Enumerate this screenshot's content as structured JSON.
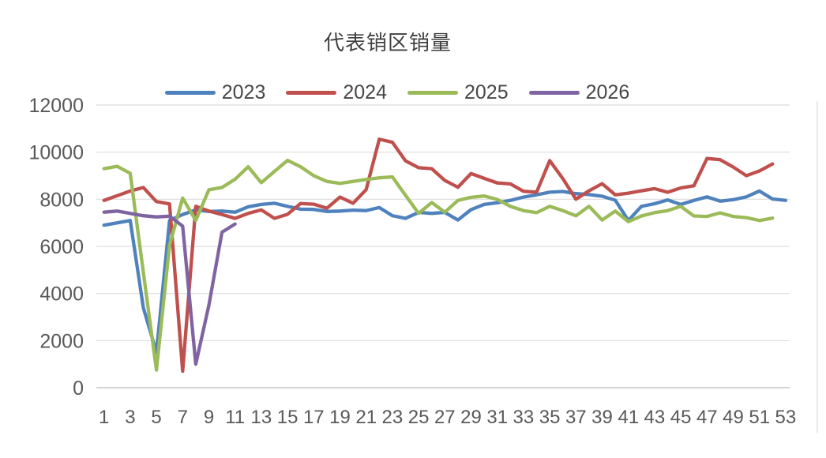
{
  "chart_data": {
    "type": "line",
    "title": "代表销区销量",
    "xlabel": "",
    "ylabel": "",
    "x_unit": "week",
    "xlim": [
      1,
      53
    ],
    "ylim": [
      0,
      12000
    ],
    "yticks": [
      0,
      2000,
      4000,
      6000,
      8000,
      10000,
      12000
    ],
    "xticks": [
      1,
      3,
      5,
      7,
      9,
      11,
      13,
      15,
      17,
      19,
      21,
      23,
      25,
      27,
      29,
      31,
      33,
      35,
      37,
      39,
      41,
      43,
      45,
      47,
      49,
      51,
      53
    ],
    "grid": "horizontal",
    "legend_position": "top-center",
    "gridline_color": "#dddddd",
    "axis_line_color": "#c9c9c9",
    "axis_text_color": "#595959",
    "series": [
      {
        "name": "2023",
        "color": "#4F81BD",
        "start_week": 1,
        "values": [
          6900,
          7000,
          7100,
          3400,
          1500,
          7100,
          7350,
          7550,
          7480,
          7500,
          7450,
          7680,
          7780,
          7830,
          7700,
          7580,
          7570,
          7480,
          7500,
          7540,
          7520,
          7650,
          7300,
          7190,
          7440,
          7400,
          7440,
          7120,
          7560,
          7780,
          7850,
          7950,
          8090,
          8190,
          8300,
          8330,
          8240,
          8200,
          8130,
          7960,
          7100,
          7700,
          7810,
          7970,
          7780,
          7950,
          8100,
          7920,
          7980,
          8100,
          8350,
          8010,
          7950
        ]
      },
      {
        "name": "2024",
        "color": "#C0504D",
        "start_week": 1,
        "values": [
          7950,
          8150,
          8350,
          8500,
          7900,
          7800,
          700,
          7700,
          7500,
          7350,
          7190,
          7400,
          7550,
          7190,
          7360,
          7820,
          7790,
          7620,
          8090,
          7830,
          8410,
          10550,
          10420,
          9630,
          9340,
          9300,
          8800,
          8510,
          9090,
          8890,
          8690,
          8650,
          8340,
          8300,
          9640,
          8880,
          8000,
          8360,
          8660,
          8190,
          8260,
          8360,
          8450,
          8300,
          8480,
          8570,
          9730,
          9680,
          9370,
          9000,
          9200,
          9500
        ]
      },
      {
        "name": "2025",
        "color": "#9BBB59",
        "start_week": 1,
        "values": [
          9300,
          9400,
          9100,
          4900,
          750,
          6050,
          8050,
          7100,
          8400,
          8500,
          8850,
          9380,
          8700,
          9180,
          9650,
          9380,
          9000,
          8760,
          8670,
          8760,
          8840,
          8910,
          8950,
          8170,
          7400,
          7860,
          7450,
          7950,
          8080,
          8140,
          7990,
          7700,
          7520,
          7430,
          7700,
          7520,
          7300,
          7700,
          7120,
          7500,
          7050,
          7290,
          7430,
          7520,
          7700,
          7290,
          7270,
          7420,
          7270,
          7220,
          7100,
          7200
        ]
      },
      {
        "name": "2026",
        "color": "#8064A2",
        "start_week": 1,
        "values": [
          7450,
          7500,
          7400,
          7300,
          7250,
          7280,
          6860,
          1000,
          3500,
          6600,
          6950
        ]
      }
    ]
  }
}
